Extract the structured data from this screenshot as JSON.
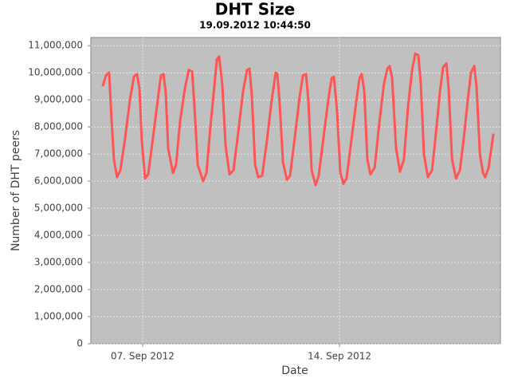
{
  "chart_data": {
    "type": "line",
    "title": "DHT Size",
    "subtitle": "19.09.2012 10:44:50",
    "x_label": "Date",
    "y_label": "Number of DHT peers",
    "xlim": [
      5.16,
      19.72
    ],
    "xticks": [
      {
        "value": 7,
        "label": "07. Sep 2012"
      },
      {
        "value": 14,
        "label": "14. Sep 2012"
      }
    ],
    "ylim": [
      0,
      11300000
    ],
    "yticks": [
      0,
      {
        "value": 1000000,
        "label": "1,000,000"
      },
      {
        "value": 2000000,
        "label": "2,000,000"
      },
      {
        "value": 3000000,
        "label": "3,000,000"
      },
      {
        "value": 4000000,
        "label": "4,000,000"
      },
      {
        "value": 5000000,
        "label": "5,000,000"
      },
      {
        "value": 6000000,
        "label": "6,000,000"
      },
      {
        "value": 7000000,
        "label": "7,000,000"
      },
      {
        "value": 8000000,
        "label": "8,000,000"
      },
      {
        "value": 9000000,
        "label": "9,000,000"
      },
      {
        "value": 10000000,
        "label": "10,000,000"
      },
      {
        "value": 11000000,
        "label": "11,000,000"
      }
    ],
    "grid": true,
    "background": "#c0c0c0",
    "series": [
      {
        "color": "#ff5555",
        "x": [
          5.58,
          5.7,
          5.81,
          5.89,
          5.98,
          6.09,
          6.21,
          6.38,
          6.55,
          6.69,
          6.8,
          6.89,
          6.97,
          7.09,
          7.2,
          7.37,
          7.54,
          7.65,
          7.74,
          7.82,
          7.91,
          8.08,
          8.19,
          8.33,
          8.5,
          8.64,
          8.76,
          8.84,
          8.96,
          9.15,
          9.27,
          9.41,
          9.55,
          9.64,
          9.72,
          9.83,
          9.95,
          10.09,
          10.23,
          10.4,
          10.57,
          10.71,
          10.8,
          10.88,
          11.0,
          11.11,
          11.25,
          11.42,
          11.59,
          11.73,
          11.79,
          11.87,
          11.99,
          12.13,
          12.24,
          12.41,
          12.58,
          12.7,
          12.81,
          12.89,
          13.01,
          13.15,
          13.26,
          13.43,
          13.6,
          13.72,
          13.8,
          13.91,
          14.03,
          14.14,
          14.25,
          14.42,
          14.59,
          14.71,
          14.79,
          14.88,
          14.99,
          15.1,
          15.25,
          15.42,
          15.58,
          15.7,
          15.78,
          15.87,
          16.01,
          16.15,
          16.29,
          16.44,
          16.58,
          16.69,
          16.8,
          16.89,
          17.0,
          17.14,
          17.29,
          17.43,
          17.57,
          17.68,
          17.8,
          17.88,
          18.0,
          18.14,
          18.28,
          18.42,
          18.56,
          18.67,
          18.79,
          18.87,
          18.99,
          19.1,
          19.18,
          19.3,
          19.47
        ],
        "values": [
          9500000,
          9900000,
          10000000,
          8400000,
          6800000,
          6150000,
          6400000,
          7600000,
          9000000,
          9850000,
          9950000,
          9400000,
          7500000,
          6100000,
          6250000,
          7600000,
          9000000,
          9900000,
          9950000,
          9300000,
          7200000,
          6300000,
          6600000,
          8200000,
          9400000,
          10100000,
          10050000,
          8800000,
          6600000,
          6000000,
          6300000,
          8000000,
          9500000,
          10500000,
          10600000,
          9600000,
          7300000,
          6250000,
          6400000,
          7800000,
          9300000,
          10100000,
          10150000,
          9200000,
          6600000,
          6150000,
          6200000,
          7500000,
          9000000,
          10000000,
          9950000,
          8900000,
          6700000,
          6050000,
          6200000,
          7600000,
          9100000,
          9900000,
          9950000,
          9000000,
          6400000,
          5850000,
          6200000,
          7600000,
          9000000,
          9800000,
          9850000,
          8600000,
          6300000,
          5900000,
          6100000,
          7500000,
          8900000,
          9800000,
          9950000,
          9300000,
          6800000,
          6250000,
          6500000,
          8200000,
          9600000,
          10150000,
          10250000,
          9800000,
          7200000,
          6350000,
          6800000,
          8800000,
          10100000,
          10700000,
          10650000,
          9600000,
          7000000,
          6150000,
          6400000,
          7800000,
          9300000,
          10200000,
          10350000,
          9400000,
          6800000,
          6100000,
          6400000,
          7600000,
          9000000,
          10000000,
          10250000,
          9500000,
          7000000,
          6300000,
          6150000,
          6500000,
          7750000
        ]
      }
    ]
  }
}
